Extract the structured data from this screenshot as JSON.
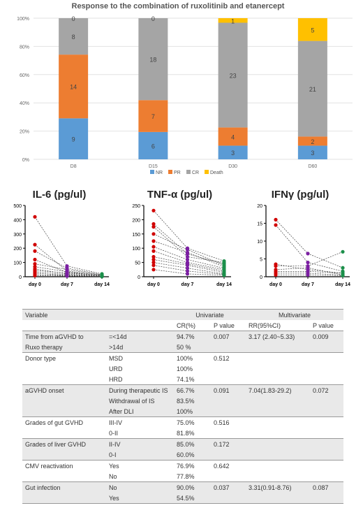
{
  "chart_data": [
    {
      "type": "bar",
      "stacked": true,
      "percent": true,
      "title": "Response to the combination of ruxolitinib and etanercept",
      "categories": [
        "D8",
        "D15",
        "D30",
        "D60"
      ],
      "ylim": [
        0,
        100
      ],
      "yticks": [
        "0%",
        "20%",
        "40%",
        "60%",
        "80%",
        "100%"
      ],
      "series": [
        {
          "name": "NR",
          "color": "#5b9bd5",
          "values": [
            9,
            6,
            3,
            3
          ]
        },
        {
          "name": "PR",
          "color": "#ed7d31",
          "values": [
            14,
            7,
            4,
            2
          ]
        },
        {
          "name": "CR",
          "color": "#a5a5a5",
          "values": [
            8,
            18,
            23,
            21
          ]
        },
        {
          "name": "Death",
          "color": "#ffc000",
          "values": [
            0,
            0,
            1,
            5
          ]
        }
      ],
      "legend_position": "bottom"
    },
    {
      "type": "scatter",
      "title": "IL-6 (pg/ul)",
      "categories": [
        "day 0",
        "day 7",
        "day 14"
      ],
      "ylim": [
        0,
        500
      ],
      "yticks": [
        0,
        100,
        200,
        300,
        400,
        500
      ],
      "colors": [
        "#d00000",
        "#7b1fa2",
        "#1b8f4a"
      ],
      "points": [
        [
          420,
          75,
          20
        ],
        [
          225,
          40,
          10
        ],
        [
          180,
          60,
          15
        ],
        [
          120,
          30,
          8
        ],
        [
          90,
          50,
          12
        ],
        [
          70,
          35,
          6
        ],
        [
          55,
          20,
          5
        ],
        [
          45,
          25,
          10
        ],
        [
          35,
          15,
          4
        ],
        [
          25,
          10,
          3
        ],
        [
          15,
          8,
          2
        ],
        [
          8,
          5,
          1
        ]
      ]
    },
    {
      "type": "scatter",
      "title": "TNF-α (pg/ul)",
      "categories": [
        "day 0",
        "day 7",
        "day 14"
      ],
      "ylim": [
        0,
        250
      ],
      "yticks": [
        0,
        50,
        100,
        150,
        200,
        250
      ],
      "colors": [
        "#d00000",
        "#7b1fa2",
        "#1b8f4a"
      ],
      "points": [
        [
          232,
          100,
          55
        ],
        [
          185,
          80,
          45
        ],
        [
          175,
          70,
          50
        ],
        [
          150,
          95,
          40
        ],
        [
          125,
          85,
          35
        ],
        [
          105,
          60,
          30
        ],
        [
          90,
          50,
          25
        ],
        [
          70,
          45,
          20
        ],
        [
          60,
          40,
          15
        ],
        [
          50,
          30,
          10
        ],
        [
          40,
          20,
          8
        ],
        [
          25,
          10,
          5
        ]
      ]
    },
    {
      "type": "scatter",
      "title": "IFNγ (pg/ul)",
      "categories": [
        "day 0",
        "day 7",
        "day 14"
      ],
      "ylim": [
        0,
        20
      ],
      "yticks": [
        0,
        5,
        10,
        15,
        20
      ],
      "colors": [
        "#d00000",
        "#7b1fa2",
        "#1b8f4a"
      ],
      "points": [
        [
          16,
          6.5,
          2.5
        ],
        [
          14.5,
          4,
          1.5
        ],
        [
          3,
          3,
          7
        ],
        [
          3.5,
          2,
          1
        ],
        [
          2,
          2.5,
          0.5
        ],
        [
          1.5,
          1.5,
          1
        ],
        [
          1,
          1,
          0.5
        ],
        [
          0.5,
          0.5,
          0.3
        ]
      ]
    }
  ],
  "table": {
    "headers": {
      "variable": "Variable",
      "univariate": "Univariate",
      "multivariate": "Multivariate",
      "cr": "CR(%)",
      "p1": "P value",
      "rr": "RR(95%CI)",
      "p2": "P value"
    },
    "rows": [
      {
        "variable": "Time from aGVHD to",
        "level": "=<14d",
        "cr": "94.7%",
        "p1": "0.007",
        "rr": "3.17 (2.40~5.33)",
        "p2": "0.009",
        "shade": true,
        "topline": true
      },
      {
        "variable": "Ruxo therapy",
        "level": ">14d",
        "cr": "50 %",
        "p1": "",
        "rr": "",
        "p2": "",
        "shade": true
      },
      {
        "variable": "Donor type",
        "level": "MSD",
        "cr": "100%",
        "p1": "0.512",
        "rr": "",
        "p2": "",
        "shade": false,
        "topline": true
      },
      {
        "variable": "",
        "level": "URD",
        "cr": "100%",
        "p1": "",
        "rr": "",
        "p2": "",
        "shade": false
      },
      {
        "variable": "",
        "level": "HRD",
        "cr": "74.1%",
        "p1": "",
        "rr": "",
        "p2": "",
        "shade": false
      },
      {
        "variable": "aGVHD onset",
        "level": "During therapeutic IS",
        "cr": "66.7%",
        "p1": "0.091",
        "rr": "7.04(1.83-29.2)",
        "p2": "0.072",
        "shade": true,
        "topline": true
      },
      {
        "variable": "",
        "level": "Withdrawal of IS",
        "cr": "83.5%",
        "p1": "",
        "rr": "",
        "p2": "",
        "shade": true
      },
      {
        "variable": "",
        "level": "After  DLI",
        "cr": "100%",
        "p1": "",
        "rr": "",
        "p2": "",
        "shade": true
      },
      {
        "variable": "Grades of gut GVHD",
        "level": "III-IV",
        "cr": "75.0%",
        "p1": "0.516",
        "rr": "",
        "p2": "",
        "shade": false,
        "topline": true
      },
      {
        "variable": "",
        "level": "0-II",
        "cr": "81.8%",
        "p1": "",
        "rr": "",
        "p2": "",
        "shade": false
      },
      {
        "variable": "Grades of liver GVHD",
        "level": "II-IV",
        "cr": "85.0%",
        "p1": "0.172",
        "rr": "",
        "p2": "",
        "shade": true,
        "topline": true
      },
      {
        "variable": "",
        "level": "0-I",
        "cr": "60.0%",
        "p1": "",
        "rr": "",
        "p2": "",
        "shade": true
      },
      {
        "variable": "CMV reactivation",
        "level": "Yes",
        "cr": "76.9%",
        "p1": "0.642",
        "rr": "",
        "p2": "",
        "shade": false,
        "topline": true
      },
      {
        "variable": "",
        "level": "No",
        "cr": "77.8%",
        "p1": "",
        "rr": "",
        "p2": "",
        "shade": false
      },
      {
        "variable": "Gut infection",
        "level": "No",
        "cr": "90.0%",
        "p1": "0.037",
        "rr": "3.31(0.91-8.76)",
        "p2": "0.087",
        "shade": true,
        "topline": true
      },
      {
        "variable": "",
        "level": "Yes",
        "cr": "54.5%",
        "p1": "",
        "rr": "",
        "p2": "",
        "shade": true,
        "endline": true
      }
    ]
  }
}
